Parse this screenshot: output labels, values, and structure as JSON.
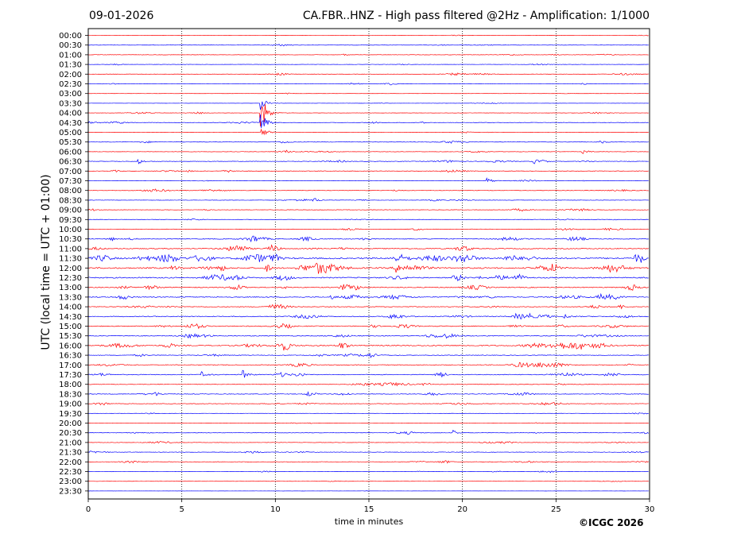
{
  "header": {
    "date": "09-01-2026",
    "title": "CA.FBR..HNZ - High pass filtered @2Hz - Amplification: 1/1000"
  },
  "footer": {
    "copyright": "©ICGC 2026"
  },
  "chart_data": {
    "type": "line",
    "title": "CA.FBR..HNZ - High pass filtered @2Hz - Amplification: 1/1000",
    "xlabel": "time in minutes",
    "ylabel": "UTC (local time = UTC + 01:00)",
    "xlim": [
      0,
      30
    ],
    "x_ticks": [
      "0",
      "5",
      "10",
      "15",
      "20",
      "25",
      "30"
    ],
    "grid": "vertical dotted lines at 5-minute intervals",
    "row_labels": [
      "00:00",
      "00:30",
      "01:00",
      "01:30",
      "02:00",
      "02:30",
      "03:00",
      "03:30",
      "04:00",
      "04:30",
      "05:00",
      "05:30",
      "06:00",
      "06:30",
      "07:00",
      "07:30",
      "08:00",
      "08:30",
      "09:00",
      "09:30",
      "10:00",
      "10:30",
      "11:00",
      "11:30",
      "12:00",
      "12:30",
      "13:00",
      "13:30",
      "14:00",
      "14:30",
      "15:00",
      "15:30",
      "16:00",
      "16:30",
      "17:00",
      "17:30",
      "18:00",
      "18:30",
      "19:00",
      "19:30",
      "20:00",
      "20:30",
      "21:00",
      "21:30",
      "22:00",
      "22:30",
      "23:00",
      "23:30"
    ],
    "trace_colors": [
      "#ff0000",
      "#0000ff"
    ],
    "traces_present_through": "23:30",
    "noise_level_by_row": [
      0.3,
      0.5,
      0.6,
      0.5,
      0.6,
      0.6,
      0.3,
      0.3,
      0.5,
      0.8,
      0.4,
      0.7,
      0.6,
      0.8,
      0.9,
      0.5,
      0.8,
      0.6,
      0.7,
      0.6,
      0.7,
      1.3,
      1.4,
      2.3,
      2.1,
      1.8,
      1.5,
      1.4,
      1.2,
      1.4,
      1.3,
      1.3,
      1.8,
      1.0,
      1.2,
      1.2,
      0.9,
      1.0,
      0.8,
      0.4,
      0.5,
      0.7,
      0.6,
      0.7,
      0.8,
      0.6,
      0.4,
      0.2
    ],
    "events": [
      {
        "row": "03:30",
        "start_min": 9.15,
        "peak_amplitude_rows": 0.9
      },
      {
        "row": "04:00",
        "start_min": 9.15,
        "peak_amplitude_rows": 3.0
      },
      {
        "row": "04:30",
        "start_min": 9.15,
        "peak_amplitude_rows": 1.6
      },
      {
        "row": "05:00",
        "start_min": 9.2,
        "peak_amplitude_rows": 0.7
      },
      {
        "row": "06:00",
        "start_min": 26.4,
        "peak_amplitude_rows": 0.25
      },
      {
        "row": "06:30",
        "start_min": 2.6,
        "peak_amplitude_rows": 0.35
      },
      {
        "row": "06:30",
        "start_min": 23.8,
        "peak_amplitude_rows": 0.3
      },
      {
        "row": "07:30",
        "start_min": 21.3,
        "peak_amplitude_rows": 0.3
      },
      {
        "row": "08:30",
        "start_min": 12.0,
        "peak_amplitude_rows": 0.25
      },
      {
        "row": "11:30",
        "start_min": 29.2,
        "peak_amplitude_rows": 0.3
      },
      {
        "row": "12:00",
        "start_min": 4.4,
        "peak_amplitude_rows": 0.45
      },
      {
        "row": "12:00",
        "start_min": 16.4,
        "peak_amplitude_rows": 0.45
      },
      {
        "row": "12:30",
        "start_min": 21.8,
        "peak_amplitude_rows": 0.3
      },
      {
        "row": "13:30",
        "start_min": 12.9,
        "peak_amplitude_rows": 0.3
      },
      {
        "row": "14:30",
        "start_min": 22.7,
        "peak_amplitude_rows": 0.3
      },
      {
        "row": "14:30",
        "start_min": 25.4,
        "peak_amplitude_rows": 0.3
      },
      {
        "row": "17:30",
        "start_min": 6.0,
        "peak_amplitude_rows": 0.35
      },
      {
        "row": "17:30",
        "start_min": 8.2,
        "peak_amplitude_rows": 0.55
      },
      {
        "row": "18:30",
        "start_min": 3.5,
        "peak_amplitude_rows": 0.25
      },
      {
        "row": "20:30",
        "start_min": 19.5,
        "peak_amplitude_rows": 0.25
      }
    ]
  }
}
